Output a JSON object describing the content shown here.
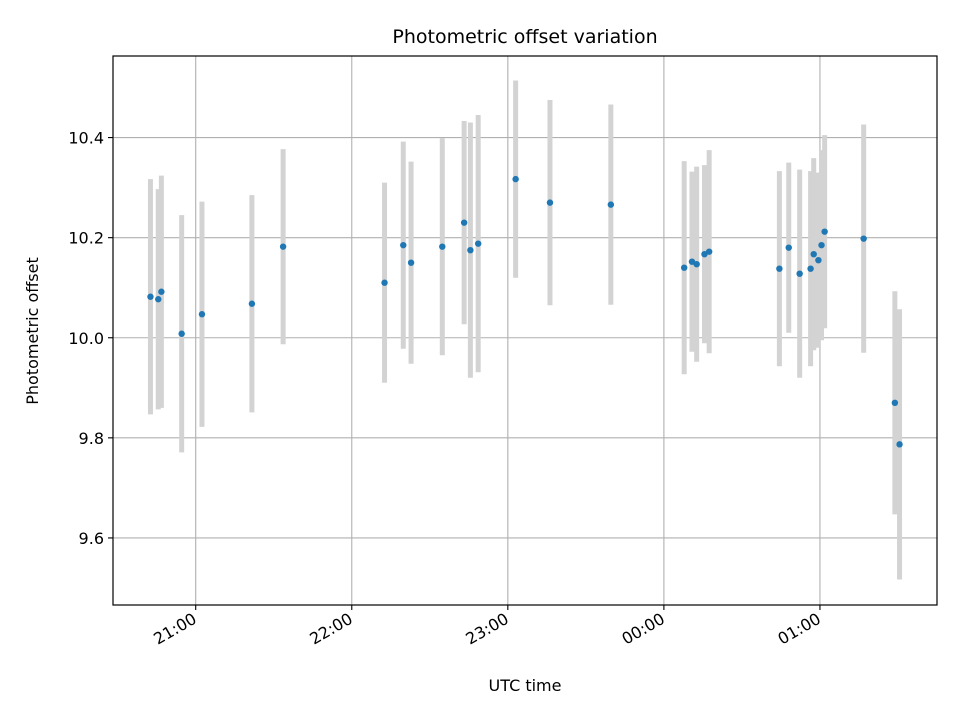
{
  "chart_data": {
    "type": "scatter",
    "title": "Photometric offset variation",
    "xlabel": "UTC time",
    "ylabel": "Photometric offset",
    "x_unit": "hours (UTC, crossing midnight)",
    "xlim": [
      20.47,
      25.75
    ],
    "ylim": [
      9.466,
      10.563
    ],
    "x_ticks": [
      {
        "value": 21,
        "label": "21:00"
      },
      {
        "value": 22,
        "label": "22:00"
      },
      {
        "value": 23,
        "label": "23:00"
      },
      {
        "value": 24,
        "label": "00:00"
      },
      {
        "value": 25,
        "label": "01:00"
      }
    ],
    "y_ticks": [
      {
        "value": 9.6,
        "label": "9.6"
      },
      {
        "value": 9.8,
        "label": "9.8"
      },
      {
        "value": 10.0,
        "label": "10.0"
      },
      {
        "value": 10.2,
        "label": "10.2"
      },
      {
        "value": 10.4,
        "label": "10.4"
      }
    ],
    "grid": true,
    "series": [
      {
        "marker_color": "#1f77b4",
        "errorbar_color": "#d3d3d3",
        "points": [
          {
            "x": 20.71,
            "y": 10.082,
            "err": 0.235
          },
          {
            "x": 20.76,
            "y": 10.077,
            "err": 0.22
          },
          {
            "x": 20.78,
            "y": 10.092,
            "err": 0.232
          },
          {
            "x": 20.91,
            "y": 10.008,
            "err": 0.237
          },
          {
            "x": 21.04,
            "y": 10.047,
            "err": 0.225
          },
          {
            "x": 21.36,
            "y": 10.068,
            "err": 0.217
          },
          {
            "x": 21.56,
            "y": 10.182,
            "err": 0.195
          },
          {
            "x": 22.21,
            "y": 10.11,
            "err": 0.2
          },
          {
            "x": 22.33,
            "y": 10.185,
            "err": 0.207
          },
          {
            "x": 22.38,
            "y": 10.15,
            "err": 0.202
          },
          {
            "x": 22.58,
            "y": 10.182,
            "err": 0.217
          },
          {
            "x": 22.72,
            "y": 10.23,
            "err": 0.203
          },
          {
            "x": 22.76,
            "y": 10.175,
            "err": 0.255
          },
          {
            "x": 22.81,
            "y": 10.188,
            "err": 0.257
          },
          {
            "x": 23.05,
            "y": 10.317,
            "err": 0.197
          },
          {
            "x": 23.27,
            "y": 10.27,
            "err": 0.205
          },
          {
            "x": 23.66,
            "y": 10.266,
            "err": 0.2
          },
          {
            "x": 24.13,
            "y": 10.14,
            "err": 0.213
          },
          {
            "x": 24.18,
            "y": 10.152,
            "err": 0.18
          },
          {
            "x": 24.21,
            "y": 10.147,
            "err": 0.195
          },
          {
            "x": 24.26,
            "y": 10.167,
            "err": 0.178
          },
          {
            "x": 24.29,
            "y": 10.172,
            "err": 0.203
          },
          {
            "x": 24.74,
            "y": 10.138,
            "err": 0.195
          },
          {
            "x": 24.8,
            "y": 10.18,
            "err": 0.17
          },
          {
            "x": 24.87,
            "y": 10.128,
            "err": 0.208
          },
          {
            "x": 24.94,
            "y": 10.138,
            "err": 0.195
          },
          {
            "x": 24.96,
            "y": 10.167,
            "err": 0.192
          },
          {
            "x": 24.99,
            "y": 10.155,
            "err": 0.175
          },
          {
            "x": 25.01,
            "y": 10.185,
            "err": 0.19
          },
          {
            "x": 25.03,
            "y": 10.212,
            "err": 0.193
          },
          {
            "x": 25.28,
            "y": 10.198,
            "err": 0.228
          },
          {
            "x": 25.48,
            "y": 9.87,
            "err": 0.223
          },
          {
            "x": 25.51,
            "y": 9.787,
            "err": 0.27
          }
        ]
      }
    ]
  }
}
